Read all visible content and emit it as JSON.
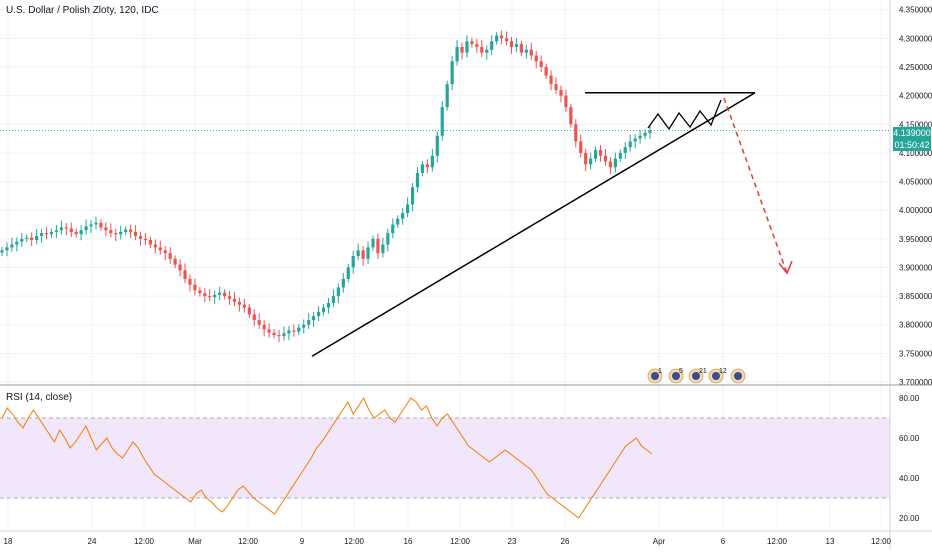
{
  "chart_title": "U.S. Dollar / Polish Zloty, 120, IDC",
  "current_price": "4.139000",
  "countdown": "01:50:42",
  "colors": {
    "up": "#26a69a",
    "down": "#ef5350",
    "rsi_line": "#f57c00",
    "rsi_band": "#f2e6fb",
    "trendline": "#000000",
    "projection": "#e53935",
    "price_line": "#26a69a"
  },
  "events": [
    "1",
    "5",
    "21",
    "12"
  ],
  "chart_data": [
    {
      "type": "candlestick",
      "title": "U.S. Dollar / Polish Zloty, 120, IDC",
      "ylim": [
        3.7,
        4.36
      ],
      "y_ticks": [
        "4.350000",
        "4.300000",
        "4.250000",
        "4.200000",
        "4.150000",
        "4.100000",
        "4.050000",
        "4.000000",
        "3.950000",
        "3.900000",
        "3.850000",
        "3.800000",
        "3.750000",
        "3.700000"
      ],
      "x_ticks": [
        "18",
        "24",
        "12:00",
        "Mar",
        "12:00",
        "9",
        "12:00",
        "16",
        "12:00",
        "23",
        "26",
        "Apr",
        "6",
        "12:00",
        "13",
        "12:00"
      ],
      "grid": true,
      "series": [
        {
          "name": "close",
          "values": [
            3.93,
            3.935,
            3.94,
            3.945,
            3.95,
            3.952,
            3.948,
            3.955,
            3.96,
            3.958,
            3.962,
            3.965,
            3.97,
            3.968,
            3.962,
            3.958,
            3.965,
            3.972,
            3.975,
            3.978,
            3.97,
            3.965,
            3.96,
            3.958,
            3.962,
            3.966,
            3.962,
            3.955,
            3.95,
            3.948,
            3.94,
            3.935,
            3.93,
            3.925,
            3.915,
            3.905,
            3.895,
            3.88,
            3.87,
            3.86,
            3.855,
            3.85,
            3.848,
            3.852,
            3.856,
            3.85,
            3.845,
            3.84,
            3.835,
            3.83,
            3.818,
            3.808,
            3.8,
            3.792,
            3.786,
            3.782,
            3.78,
            3.785,
            3.79,
            3.788,
            3.795,
            3.8,
            3.808,
            3.815,
            3.822,
            3.83,
            3.838,
            3.85,
            3.865,
            3.88,
            3.9,
            3.92,
            3.93,
            3.915,
            3.935,
            3.95,
            3.925,
            3.94,
            3.96,
            3.975,
            3.985,
            3.995,
            4.01,
            4.04,
            4.065,
            4.08,
            4.075,
            4.095,
            4.13,
            4.18,
            4.22,
            4.26,
            4.285,
            4.275,
            4.295,
            4.29,
            4.285,
            4.275,
            4.28,
            4.295,
            4.305,
            4.3,
            4.295,
            4.285,
            4.29,
            4.275,
            4.28,
            4.27,
            4.26,
            4.25,
            4.235,
            4.22,
            4.21,
            4.2,
            4.18,
            4.15,
            4.12,
            4.1,
            4.08,
            4.09,
            4.105,
            4.095,
            4.085,
            4.075,
            4.09,
            4.1,
            4.11,
            4.12,
            4.125,
            4.13,
            4.135,
            4.139
          ]
        },
        {
          "name": "annotations",
          "horizontal_resistance": 4.205,
          "ascending_trendline": {
            "from": 3.745,
            "to": 4.205
          },
          "projected_low": 3.89
        }
      ]
    },
    {
      "type": "line",
      "title": "RSI (14, close)",
      "ylim": [
        15,
        85
      ],
      "y_ticks": [
        "80.00",
        "60.00",
        "40.00",
        "20.00"
      ],
      "bands": [
        30,
        70
      ],
      "series": [
        {
          "name": "RSI",
          "values": [
            70,
            75,
            72,
            68,
            65,
            70,
            74,
            70,
            66,
            62,
            58,
            64,
            60,
            55,
            58,
            62,
            66,
            60,
            54,
            57,
            60,
            55,
            52,
            50,
            54,
            58,
            55,
            50,
            46,
            42,
            40,
            38,
            36,
            34,
            32,
            30,
            28,
            32,
            34,
            30,
            28,
            25,
            23,
            26,
            30,
            34,
            36,
            33,
            30,
            28,
            26,
            24,
            22,
            26,
            30,
            34,
            38,
            42,
            46,
            50,
            55,
            58,
            62,
            66,
            70,
            74,
            78,
            72,
            76,
            80,
            74,
            70,
            72,
            74,
            70,
            68,
            72,
            76,
            80,
            78,
            74,
            76,
            70,
            66,
            70,
            72,
            68,
            64,
            60,
            56,
            54,
            52,
            50,
            48,
            50,
            52,
            54,
            52,
            50,
            48,
            46,
            44,
            40,
            36,
            32,
            30,
            28,
            26,
            24,
            22,
            20,
            24,
            28,
            32,
            36,
            40,
            44,
            48,
            52,
            56,
            58,
            60,
            56,
            54,
            52
          ]
        }
      ]
    }
  ]
}
